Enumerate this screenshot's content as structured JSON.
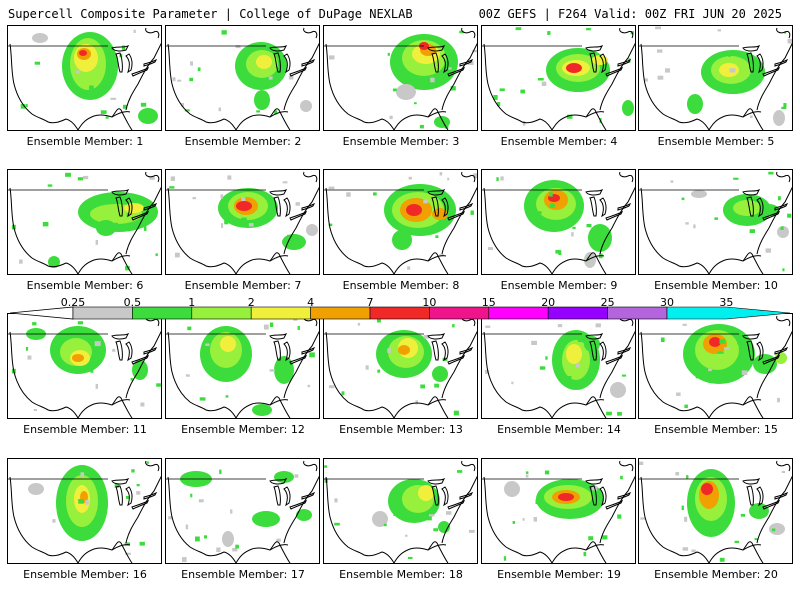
{
  "header": {
    "title_left": "Supercell Composite Parameter | College of DuPage NEXLAB",
    "title_right": "00Z GEFS | F264 Valid: 00Z FRI JUN 20 2025"
  },
  "legend": {
    "thresholds": [
      "0.25",
      "0.5",
      "1",
      "2",
      "4",
      "7",
      "10",
      "15",
      "20",
      "25",
      "30",
      "35"
    ],
    "colors": [
      "#c8c8c8",
      "#3cdc3c",
      "#96f03c",
      "#f0f03c",
      "#f0a000",
      "#f02828",
      "#f0148c",
      "#ff00ff",
      "#9600ff",
      "#b464dc",
      "#00f0f0"
    ]
  },
  "panels": [
    {
      "label": "Ensemble Member: 1"
    },
    {
      "label": "Ensemble Member: 2"
    },
    {
      "label": "Ensemble Member: 3"
    },
    {
      "label": "Ensemble Member: 4"
    },
    {
      "label": "Ensemble Member: 5"
    },
    {
      "label": "Ensemble Member: 6"
    },
    {
      "label": "Ensemble Member: 7"
    },
    {
      "label": "Ensemble Member: 8"
    },
    {
      "label": "Ensemble Member: 9"
    },
    {
      "label": "Ensemble Member: 10"
    },
    {
      "label": "Ensemble Member: 11"
    },
    {
      "label": "Ensemble Member: 12"
    },
    {
      "label": "Ensemble Member: 13"
    },
    {
      "label": "Ensemble Member: 14"
    },
    {
      "label": "Ensemble Member: 15"
    },
    {
      "label": "Ensemble Member: 16"
    },
    {
      "label": "Ensemble Member: 17"
    },
    {
      "label": "Ensemble Member: 18"
    },
    {
      "label": "Ensemble Member: 19"
    },
    {
      "label": "Ensemble Member: 20"
    }
  ]
}
